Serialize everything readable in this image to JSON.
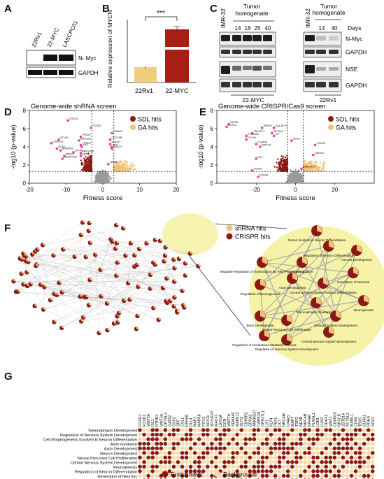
{
  "panels": {
    "A": {
      "letter": "A",
      "lanes": [
        "22Rv1",
        "22-MYC",
        "LASCPC01"
      ],
      "bands": [
        "N- Myc",
        "GAPDH"
      ]
    },
    "B": {
      "letter": "B",
      "ylabel": "Relative expression of MYCN",
      "significance": "***",
      "chart_data": {
        "type": "bar",
        "categories": [
          "22Rv1",
          "22-MYC"
        ],
        "values": [
          1,
          160
        ],
        "yaxis_break": true,
        "error": [
          0.1,
          6
        ],
        "colors": [
          "#f3cd7e",
          "#a81d14"
        ]
      }
    },
    "C": {
      "letter": "C",
      "tumor_header_left": "Tumor homogenate",
      "tumor_header_right": "Tumor homogenate",
      "days_label": "Days",
      "lanes_left": [
        "IMR-32",
        "14",
        "18",
        "25",
        "40"
      ],
      "lanes_right": [
        "IMR-32",
        "14",
        "40"
      ],
      "bands": [
        "N-Myc",
        "GAPDH",
        "NSE",
        "GAPDH"
      ],
      "group_left": "22-MYC",
      "group_right": "22Rv1"
    },
    "D": {
      "letter": "D",
      "chart_data": {
        "type": "scatter",
        "title": "Genome-wide shRNA screen",
        "xlabel": "Fitness score",
        "ylabel": "-log10 (p-value)",
        "xlim": [
          -20,
          20
        ],
        "ylim": [
          0,
          8
        ],
        "xticks": [
          "-20",
          "-10",
          "0",
          "10",
          "20"
        ],
        "yticks": [
          "0",
          "2",
          "4",
          "6",
          "8"
        ],
        "thresholds": {
          "x": [
            -3,
            3
          ],
          "y": 1.3
        },
        "legend": [
          "SDL hits",
          "GA hits"
        ],
        "legend_colors": [
          "#8b1a14",
          "#f3c27a"
        ],
        "labels": [
          {
            "text": "FOXG1",
            "x": -9.5,
            "y": 6.9
          },
          {
            "text": "TCEB2",
            "x": -3.2,
            "y": 6.1
          },
          {
            "text": "VPS26",
            "x": -6.0,
            "y": 5.1
          },
          {
            "text": "STUB1",
            "x": -12.0,
            "y": 4.8
          },
          {
            "text": "CAMKV",
            "x": 2.5,
            "y": 5.5
          },
          {
            "text": "CDC20B",
            "x": 2.0,
            "y": 4.8
          },
          {
            "text": "DNAJC5",
            "x": -6.5,
            "y": 4.7
          },
          {
            "text": "CSNK1E",
            "x": -14.0,
            "y": 4.4
          },
          {
            "text": "DMRT1",
            "x": 2.0,
            "y": 4.3
          },
          {
            "text": "TEAD4",
            "x": -6.0,
            "y": 4.2
          },
          {
            "text": "TK1",
            "x": -5.8,
            "y": 4.0
          },
          {
            "text": "BTK",
            "x": 2.4,
            "y": 4.0
          },
          {
            "text": "UCK1",
            "x": -12.5,
            "y": 3.8
          },
          {
            "text": "MACF1",
            "x": 2.5,
            "y": 3.8
          },
          {
            "text": "NPBWR1",
            "x": -11.5,
            "y": 3.6
          },
          {
            "text": "EPHA8",
            "x": -8.0,
            "y": 3.4
          },
          {
            "text": "FAM109B",
            "x": -6.0,
            "y": 3.3
          },
          {
            "text": "PDE2F",
            "x": -10.5,
            "y": 3.0
          },
          {
            "text": "EBF2",
            "x": -6.0,
            "y": 3.0
          },
          {
            "text": "NEUROG2",
            "x": -11.0,
            "y": 2.7
          },
          {
            "text": "NEXN",
            "x": 1.5,
            "y": 2.1
          }
        ]
      }
    },
    "E": {
      "letter": "E",
      "chart_data": {
        "type": "scatter",
        "title": "Genome-wide CRISPR/Cas9 screen",
        "xlabel": "Fitness score",
        "ylabel": "-log10 (p-value)",
        "xlim": [
          -40,
          40
        ],
        "ylim": [
          0,
          8
        ],
        "xticks": [
          "-20",
          "0",
          "20"
        ],
        "yticks": [
          "0",
          "2",
          "4",
          "6",
          "8"
        ],
        "thresholds": {
          "x": [
            -4,
            4
          ],
          "y": 1.3
        },
        "legend": [
          "SDL hits",
          "GA hits"
        ],
        "legend_colors": [
          "#8b1a14",
          "#f3c27a"
        ],
        "labels": [
          {
            "text": "HIGD3",
            "x": -34,
            "y": 6.5
          },
          {
            "text": "EXTC3",
            "x": -35,
            "y": 6.2
          },
          {
            "text": "SRPX2",
            "x": -17,
            "y": 6.1
          },
          {
            "text": "GAL3ST4",
            "x": -11,
            "y": 6.1
          },
          {
            "text": "SMURF1",
            "x": -22,
            "y": 5.5
          },
          {
            "text": "SLC4A4",
            "x": -12,
            "y": 5.5
          },
          {
            "text": "PYCARD",
            "x": -25,
            "y": 5.2
          },
          {
            "text": "KIT",
            "x": -11,
            "y": 5.2
          },
          {
            "text": "FOXHI",
            "x": -25,
            "y": 4.8
          },
          {
            "text": "CHRM5",
            "x": -20,
            "y": 4.3
          },
          {
            "text": "WNT7A",
            "x": -18,
            "y": 4.0
          },
          {
            "text": "GSX2",
            "x": -2,
            "y": 4.7
          },
          {
            "text": "FOXG1",
            "x": 10,
            "y": 4.2
          },
          {
            "text": "ISL1",
            "x": -20,
            "y": 2.7
          },
          {
            "text": "CNKN2",
            "x": 9,
            "y": 3.1
          },
          {
            "text": "FOXD1",
            "x": -22,
            "y": 1.4
          },
          {
            "text": "DNECAT1",
            "x": 3,
            "y": 1.6
          },
          {
            "text": "EPHA6",
            "x": -19,
            "y": 0.7
          }
        ]
      }
    },
    "F": {
      "letter": "F",
      "legend": [
        "shRNA hits",
        "CRISPR hits"
      ],
      "legend_colors": [
        "#f3c27a",
        "#8b1a14"
      ],
      "zoom_nodes": [
        "Genes Involved in Neuron Differentiation",
        "Regulation of Neuron Differentiation",
        "Neuron Development",
        "Negative Regulation of Transcription By RNA Polymerase II",
        "Axon Guidance",
        "Generation of Neurons",
        "Axon Development",
        "Central Nervous System Neuron Differentiation",
        "Regulation of Neurogenesis",
        "Neurogenesis",
        "Telencephalon Development",
        "Brain Development",
        "Sensory System Development",
        "Neural Precursor Cell Proliferation",
        "Central Nervous System Development",
        "Regulation of Nervous System Development",
        "Regulation of Nucleobase Metabolic Process"
      ]
    },
    "G": {
      "letter": "G",
      "legend": [
        "Enrichment",
        "Background"
      ],
      "legend_colors": [
        "#8b1a14",
        "#f7dca6"
      ],
      "columns": [
        "FOXG1",
        "FOXD1",
        "WNT5A",
        "ISL1",
        "NTRK2",
        "WNT3A",
        "DPYSL3",
        "GATA2",
        "GSX2",
        "SRF",
        "CUL1",
        "EPHA8",
        "DLL4",
        "MAP2",
        "MAPK8",
        "PITX3",
        "SOX11",
        "ZFYVE27",
        "MACF1",
        "LMX1A",
        "DCN",
        "WNT7A",
        "SEMA6C",
        "MAPK13",
        "SLIT3",
        "CDK5R2",
        "GFRA3",
        "ANKRD27",
        "CAMK2A",
        "GPR37L1",
        "LIF1",
        "KLF4",
        "PBX1",
        "DCT",
        "NRCAM",
        "LPAR3",
        "MAPT",
        "TSPO",
        "NEXN",
        "NRCAN",
        "EPHA8",
        "PLAGL1",
        "LDB1",
        "LHX2",
        "DRAX1",
        "WNT1",
        "CDKN1C",
        "NKX2.8",
        "ZBTB14",
        "ACTBL2",
        "MAML1",
        "CDK6",
        "TBX6",
        "DLFM1",
        "ROHG",
        "SOX2"
      ],
      "rows": [
        "Telencephalon Development",
        "Regulation of Nervous System Development",
        "Cell Morphogenesis Involved In Neuron Differentiation",
        "Axon Guidance",
        "Axon Development",
        "Neuron Development",
        "Neural Precursor Cell Proliferation",
        "Central Nervous System Development",
        "Neurogenesis",
        "Regulation of Neuron Differentiation",
        "Generation of Neurons",
        "Regulation of Neurogenesis",
        "Sensory System Development",
        "Central Nervous System Neuron Differentiation"
      ]
    }
  }
}
